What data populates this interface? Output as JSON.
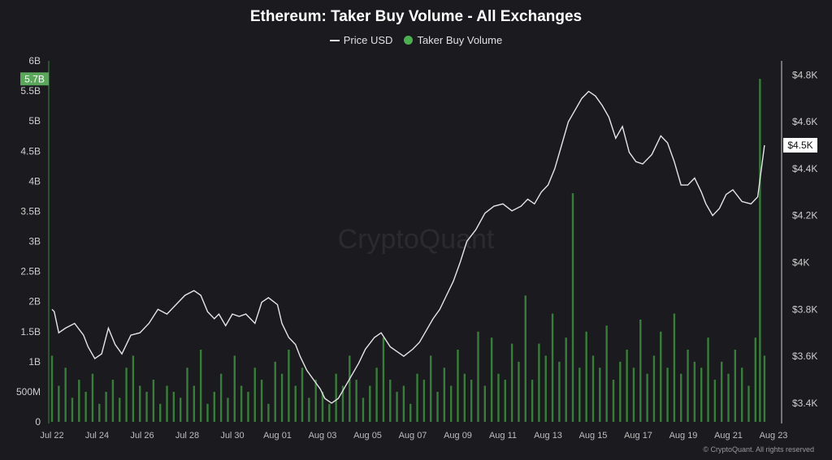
{
  "chart_data": {
    "type": "bar+line",
    "title": "Ethereum: Taker Buy Volume - All Exchanges",
    "legend": [
      {
        "name": "Price USD",
        "marker": "line",
        "color": "#e8e8e8"
      },
      {
        "name": "Taker Buy Volume",
        "marker": "dot",
        "color": "#4caf50"
      }
    ],
    "legend_placement": "top-center",
    "watermark": "CryptoQuant",
    "copyright": "© CryptoQuant. All rights reserved",
    "x_axis": {
      "ticks": [
        "Jul 22",
        "Jul 24",
        "Jul 26",
        "Jul 28",
        "Jul 30",
        "Aug 01",
        "Aug 03",
        "Aug 05",
        "Aug 07",
        "Aug 09",
        "Aug 11",
        "Aug 13",
        "Aug 15",
        "Aug 17",
        "Aug 19",
        "Aug 21",
        "Aug 23"
      ],
      "range_days": [
        0,
        32
      ]
    },
    "y_left": {
      "ticks": [
        "0",
        "500M",
        "1B",
        "1.5B",
        "2B",
        "2.5B",
        "3B",
        "3.5B",
        "4B",
        "4.5B",
        "5B",
        "5.5B",
        "6B"
      ],
      "range": [
        0,
        6000000000
      ],
      "current_label": "5.7B",
      "current_value": 5700000000
    },
    "y_right": {
      "ticks": [
        "$3.4K",
        "$3.6K",
        "$3.8K",
        "$4K",
        "$4.2K",
        "$4.4K",
        "$4.6K",
        "$4.8K"
      ],
      "tick_values": [
        3400,
        3600,
        3800,
        4000,
        4200,
        4400,
        4600,
        4800
      ],
      "range": [
        3320,
        4860
      ],
      "current_label": "$4.5K",
      "current_value": 4500
    },
    "grid": false,
    "price_series": {
      "name": "Price USD",
      "x_days": [
        0,
        0.1,
        0.3,
        0.6,
        1.0,
        1.4,
        1.6,
        1.9,
        2.2,
        2.5,
        2.8,
        3.1,
        3.5,
        3.9,
        4.3,
        4.7,
        5.1,
        5.5,
        5.9,
        6.3,
        6.6,
        6.9,
        7.2,
        7.4,
        7.7,
        8.0,
        8.3,
        8.6,
        9.0,
        9.3,
        9.6,
        10.0,
        10.2,
        10.5,
        10.8,
        11.0,
        11.3,
        11.6,
        11.9,
        12.1,
        12.4,
        12.7,
        13.0,
        13.3,
        13.6,
        13.9,
        14.3,
        14.6,
        15.0,
        15.3,
        15.6,
        16.0,
        16.3,
        16.6,
        16.9,
        17.2,
        17.5,
        17.8,
        18.1,
        18.4,
        18.8,
        19.2,
        19.6,
        20.0,
        20.4,
        20.8,
        21.1,
        21.4,
        21.7,
        22.0,
        22.3,
        22.6,
        22.9,
        23.2,
        23.5,
        23.8,
        24.1,
        24.4,
        24.7,
        25.0,
        25.3,
        25.6,
        25.9,
        26.2,
        26.6,
        27.0,
        27.3,
        27.6,
        27.9,
        28.2,
        28.5,
        28.8,
        29.0,
        29.3,
        29.6,
        29.9,
        30.2,
        30.6,
        31.0,
        31.3,
        31.6
      ],
      "values": [
        3800,
        3790,
        3700,
        3720,
        3740,
        3690,
        3640,
        3590,
        3610,
        3720,
        3650,
        3610,
        3690,
        3700,
        3740,
        3800,
        3780,
        3820,
        3860,
        3880,
        3860,
        3790,
        3760,
        3780,
        3730,
        3780,
        3770,
        3780,
        3740,
        3830,
        3850,
        3820,
        3740,
        3680,
        3650,
        3600,
        3540,
        3500,
        3460,
        3420,
        3400,
        3420,
        3470,
        3520,
        3570,
        3630,
        3680,
        3700,
        3640,
        3620,
        3600,
        3630,
        3660,
        3710,
        3760,
        3800,
        3860,
        3920,
        4000,
        4090,
        4140,
        4210,
        4240,
        4250,
        4220,
        4240,
        4270,
        4250,
        4300,
        4330,
        4400,
        4500,
        4600,
        4650,
        4700,
        4730,
        4710,
        4670,
        4620,
        4530,
        4580,
        4470,
        4430,
        4420,
        4460,
        4540,
        4510,
        4430,
        4330,
        4330,
        4360,
        4300,
        4250,
        4200,
        4230,
        4290,
        4310,
        4260,
        4250,
        4280,
        4500
      ]
    },
    "volume_series": {
      "name": "Taker Buy Volume",
      "unit": "USD",
      "note": "hourly bars; values as listed below at approximate day positions",
      "x_days": [
        0,
        0.3,
        0.6,
        0.9,
        1.2,
        1.5,
        1.8,
        2.1,
        2.4,
        2.7,
        3.0,
        3.3,
        3.6,
        3.9,
        4.2,
        4.5,
        4.8,
        5.1,
        5.4,
        5.7,
        6.0,
        6.3,
        6.6,
        6.9,
        7.2,
        7.5,
        7.8,
        8.1,
        8.4,
        8.7,
        9.0,
        9.3,
        9.6,
        9.9,
        10.2,
        10.5,
        10.8,
        11.1,
        11.4,
        11.7,
        12.0,
        12.3,
        12.6,
        12.9,
        13.2,
        13.5,
        13.8,
        14.1,
        14.4,
        14.7,
        15.0,
        15.3,
        15.6,
        15.9,
        16.2,
        16.5,
        16.8,
        17.1,
        17.4,
        17.7,
        18.0,
        18.3,
        18.6,
        18.9,
        19.2,
        19.5,
        19.8,
        20.1,
        20.4,
        20.7,
        21.0,
        21.3,
        21.6,
        21.9,
        22.2,
        22.5,
        22.8,
        23.1,
        23.4,
        23.7,
        24.0,
        24.3,
        24.6,
        24.9,
        25.2,
        25.5,
        25.8,
        26.1,
        26.4,
        26.7,
        27.0,
        27.3,
        27.6,
        27.9,
        28.2,
        28.5,
        28.8,
        29.1,
        29.4,
        29.7,
        30.0,
        30.3,
        30.6,
        30.9,
        31.2,
        31.4,
        31.6
      ],
      "values": [
        1100000000,
        600000000,
        900000000,
        400000000,
        700000000,
        500000000,
        800000000,
        300000000,
        500000000,
        700000000,
        400000000,
        900000000,
        1100000000,
        600000000,
        500000000,
        700000000,
        300000000,
        600000000,
        500000000,
        400000000,
        900000000,
        600000000,
        1200000000,
        300000000,
        500000000,
        800000000,
        400000000,
        1100000000,
        600000000,
        500000000,
        900000000,
        700000000,
        300000000,
        1000000000,
        800000000,
        1200000000,
        600000000,
        900000000,
        400000000,
        700000000,
        500000000,
        300000000,
        800000000,
        600000000,
        1100000000,
        700000000,
        400000000,
        600000000,
        900000000,
        1400000000,
        700000000,
        500000000,
        600000000,
        300000000,
        800000000,
        700000000,
        1100000000,
        500000000,
        900000000,
        600000000,
        1200000000,
        800000000,
        700000000,
        1500000000,
        600000000,
        1400000000,
        800000000,
        700000000,
        1300000000,
        1000000000,
        2100000000,
        700000000,
        1300000000,
        1100000000,
        1800000000,
        1000000000,
        1400000000,
        3800000000,
        900000000,
        1500000000,
        1100000000,
        900000000,
        1600000000,
        700000000,
        1000000000,
        1200000000,
        900000000,
        1700000000,
        800000000,
        1100000000,
        1500000000,
        900000000,
        1800000000,
        800000000,
        1200000000,
        1000000000,
        900000000,
        1400000000,
        700000000,
        1000000000,
        800000000,
        1200000000,
        900000000,
        600000000,
        1400000000,
        5700000000,
        1100000000
      ]
    }
  }
}
